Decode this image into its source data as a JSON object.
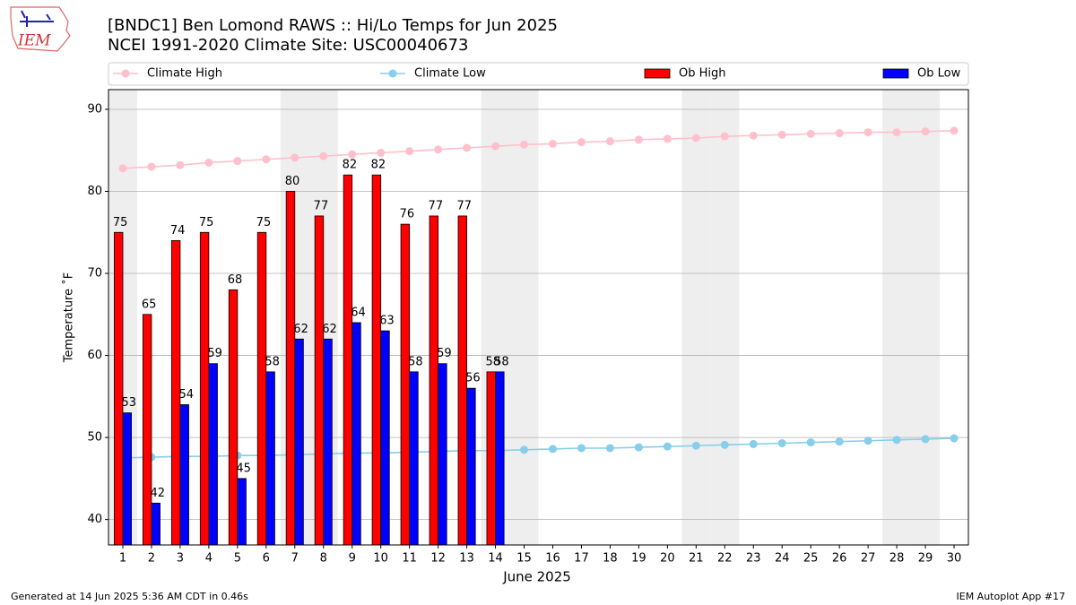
{
  "chart_data": {
    "type": "bar",
    "title": "[BNDC1] Ben Lomond RAWS :: Hi/Lo Temps for Jun 2025",
    "subtitle": "NCEI 1991-2020 Climate Site: USC00040673",
    "logo_text": "IEM",
    "x_label": "June 2025",
    "y_label": "Temperature ˚F",
    "footer_left": "Generated at 14 Jun 2025 5:36 AM CDT in 0.46s",
    "footer_right": "IEM Autoplot App #17",
    "x": [
      1,
      2,
      3,
      4,
      5,
      6,
      7,
      8,
      9,
      10,
      11,
      12,
      13,
      14,
      15,
      16,
      17,
      18,
      19,
      20,
      21,
      22,
      23,
      24,
      25,
      26,
      27,
      28,
      29,
      30
    ],
    "xlim": [
      0.5,
      30.5
    ],
    "xticks": [
      1,
      2,
      3,
      4,
      5,
      6,
      7,
      8,
      9,
      10,
      11,
      12,
      13,
      14,
      15,
      16,
      17,
      18,
      19,
      20,
      21,
      22,
      23,
      24,
      25,
      26,
      27,
      28,
      29,
      30
    ],
    "ylim": [
      36.9,
      92.4
    ],
    "yticks": [
      40,
      50,
      60,
      70,
      80,
      90
    ],
    "grid": true,
    "shaded_days": [
      1,
      7,
      8,
      14,
      15,
      21,
      22,
      28,
      29
    ],
    "shade_color": "#eeeeee",
    "series": [
      {
        "name": "Climate High",
        "type": "line",
        "color": "pink",
        "values": [
          82.8,
          83.0,
          83.2,
          83.5,
          83.7,
          83.9,
          84.1,
          84.3,
          84.5,
          84.7,
          84.9,
          85.1,
          85.3,
          85.5,
          85.7,
          85.8,
          86.0,
          86.1,
          86.3,
          86.4,
          86.5,
          86.7,
          86.8,
          86.9,
          87.0,
          87.1,
          87.2,
          87.2,
          87.3,
          87.4
        ]
      },
      {
        "name": "Climate Low",
        "type": "line",
        "color": "skyblue",
        "values": [
          47.5,
          47.6,
          47.7,
          47.7,
          47.8,
          47.8,
          47.9,
          48.0,
          48.1,
          48.1,
          48.2,
          48.3,
          48.4,
          48.4,
          48.5,
          48.6,
          48.7,
          48.7,
          48.8,
          48.9,
          49.0,
          49.1,
          49.2,
          49.3,
          49.4,
          49.5,
          49.6,
          49.7,
          49.8,
          49.9
        ]
      },
      {
        "name": "Ob High",
        "type": "bar",
        "color": "red",
        "values": [
          75,
          65,
          74,
          75,
          68,
          75,
          80,
          77,
          82,
          82,
          76,
          77,
          77,
          58,
          null,
          null,
          null,
          null,
          null,
          null,
          null,
          null,
          null,
          null,
          null,
          null,
          null,
          null,
          null,
          null
        ]
      },
      {
        "name": "Ob Low",
        "type": "bar",
        "color": "blue",
        "values": [
          53,
          42,
          54,
          59,
          45,
          58,
          62,
          62,
          64,
          63,
          58,
          59,
          56,
          58,
          null,
          null,
          null,
          null,
          null,
          null,
          null,
          null,
          null,
          null,
          null,
          null,
          null,
          null,
          null,
          null
        ]
      }
    ]
  }
}
